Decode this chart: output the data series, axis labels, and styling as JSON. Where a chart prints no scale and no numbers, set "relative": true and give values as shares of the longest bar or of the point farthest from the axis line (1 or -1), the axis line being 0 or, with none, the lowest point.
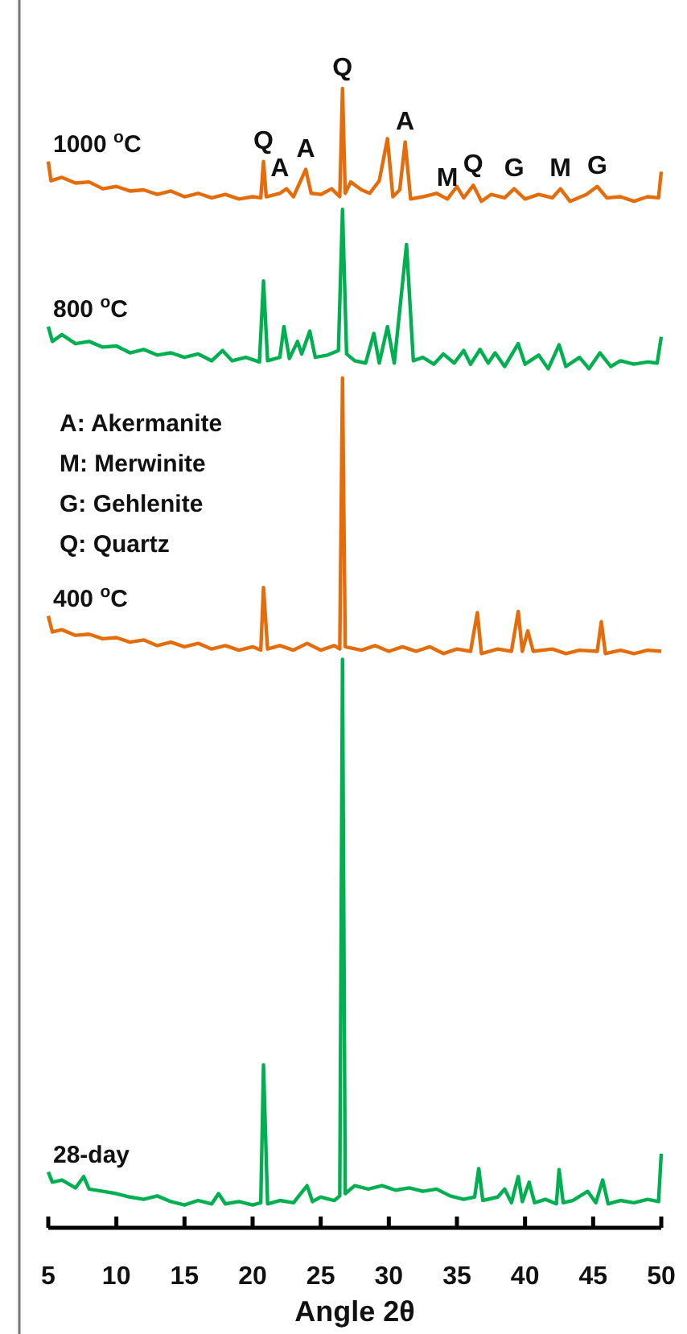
{
  "chart_data": {
    "type": "line",
    "relative": true,
    "xlabel": "Angle 2θ",
    "xlim": [
      5,
      50
    ],
    "xticks": [
      5,
      10,
      15,
      20,
      25,
      30,
      35,
      40,
      45,
      50
    ],
    "tick_labels": "x",
    "grid": false,
    "marker": "none",
    "line_style": "solid",
    "series": [
      {
        "name": "1000 $^{o}$C",
        "color": "#e46c0a",
        "x": [
          5,
          5.2,
          6,
          7,
          8,
          9,
          10,
          11,
          12,
          13,
          14,
          15,
          16,
          17,
          18,
          19,
          20,
          20.6,
          20.8,
          21,
          22,
          22.5,
          23,
          23.9,
          24.3,
          25,
          25.8,
          26.4,
          26.6,
          26.8,
          27.2,
          28,
          28.6,
          29.3,
          29.9,
          30.3,
          30.8,
          31.2,
          31.6,
          32.5,
          33.5,
          34.3,
          35,
          35.5,
          36.2,
          36.8,
          37.5,
          38.5,
          39.2,
          40,
          41,
          42,
          42.6,
          43.3,
          44.5,
          45.3,
          46,
          47,
          48,
          49,
          49.8,
          50
        ],
        "values": [
          0.936,
          0.919,
          0.922,
          0.917,
          0.918,
          0.912,
          0.914,
          0.91,
          0.911,
          0.907,
          0.91,
          0.905,
          0.908,
          0.904,
          0.907,
          0.903,
          0.905,
          0.904,
          0.936,
          0.905,
          0.908,
          0.912,
          0.905,
          0.929,
          0.908,
          0.907,
          0.912,
          0.905,
          1,
          0.908,
          0.918,
          0.911,
          0.908,
          0.919,
          0.956,
          0.905,
          0.911,
          0.953,
          0.903,
          0.905,
          0.908,
          0.903,
          0.914,
          0.904,
          0.915,
          0.901,
          0.907,
          0.904,
          0.912,
          0.903,
          0.907,
          0.904,
          0.912,
          0.901,
          0.907,
          0.914,
          0.904,
          0.905,
          0.901,
          0.905,
          0.904,
          0.927
        ]
      },
      {
        "name": "800 $^{o}$C",
        "color": "#00b050",
        "x": [
          5,
          5.3,
          6,
          7,
          8,
          9,
          10,
          11,
          12,
          13,
          14,
          15,
          16,
          17,
          17.8,
          18.5,
          19.5,
          20.5,
          20.8,
          21.1,
          22,
          22.3,
          22.7,
          23.3,
          23.6,
          24.2,
          24.6,
          25.5,
          26.3,
          26.6,
          26.9,
          27.5,
          28.3,
          28.9,
          29.3,
          29.9,
          30.4,
          31.3,
          31.8,
          32.5,
          33.3,
          34,
          34.8,
          35.5,
          36,
          36.7,
          37.3,
          37.8,
          38.5,
          39.5,
          40,
          41,
          41.7,
          42.5,
          43,
          44,
          44.7,
          45.5,
          46.3,
          47,
          48,
          49,
          49.7,
          50
        ],
        "values": [
          0.791,
          0.778,
          0.784,
          0.776,
          0.778,
          0.773,
          0.774,
          0.768,
          0.771,
          0.766,
          0.768,
          0.764,
          0.767,
          0.761,
          0.77,
          0.761,
          0.764,
          0.76,
          0.831,
          0.761,
          0.764,
          0.791,
          0.763,
          0.778,
          0.767,
          0.787,
          0.764,
          0.766,
          0.77,
          0.894,
          0.767,
          0.761,
          0.759,
          0.785,
          0.759,
          0.791,
          0.759,
          0.863,
          0.761,
          0.764,
          0.758,
          0.767,
          0.759,
          0.77,
          0.758,
          0.771,
          0.759,
          0.768,
          0.756,
          0.776,
          0.758,
          0.766,
          0.754,
          0.775,
          0.756,
          0.764,
          0.754,
          0.768,
          0.756,
          0.761,
          0.758,
          0.76,
          0.759,
          0.782
        ]
      },
      {
        "name": "400 $^{o}$C",
        "color": "#e46c0a",
        "x": [
          5,
          5.3,
          6,
          7,
          8,
          9,
          10,
          11,
          12,
          13,
          14,
          15,
          16,
          17,
          18,
          19,
          20,
          20.6,
          20.8,
          21.1,
          22,
          23,
          24,
          25,
          26,
          26.4,
          26.6,
          26.8,
          28,
          29,
          30,
          31,
          32,
          33,
          34,
          35,
          36,
          36.5,
          36.8,
          38,
          39,
          39.5,
          39.8,
          40.2,
          40.6,
          42,
          43,
          44,
          45.3,
          45.6,
          45.9,
          47,
          48,
          49,
          50
        ],
        "values": [
          0.537,
          0.523,
          0.525,
          0.52,
          0.521,
          0.517,
          0.518,
          0.514,
          0.516,
          0.511,
          0.514,
          0.51,
          0.513,
          0.508,
          0.511,
          0.507,
          0.51,
          0.507,
          0.562,
          0.508,
          0.511,
          0.507,
          0.513,
          0.507,
          0.511,
          0.508,
          0.746,
          0.51,
          0.507,
          0.511,
          0.506,
          0.51,
          0.506,
          0.51,
          0.504,
          0.508,
          0.506,
          0.54,
          0.504,
          0.508,
          0.506,
          0.541,
          0.506,
          0.524,
          0.506,
          0.508,
          0.504,
          0.507,
          0.506,
          0.532,
          0.504,
          0.507,
          0.504,
          0.507,
          0.506
        ]
      },
      {
        "name": "28-day",
        "color": "#00b050",
        "x": [
          5,
          5.3,
          6,
          7,
          7.6,
          8,
          9,
          10,
          11,
          12,
          13,
          14,
          15,
          16,
          17,
          17.5,
          18,
          19,
          20,
          20.6,
          20.8,
          21.1,
          22,
          23,
          24,
          24.4,
          25,
          26,
          26.4,
          26.6,
          26.8,
          27.5,
          28.5,
          29.5,
          30.5,
          31.5,
          32.5,
          33.5,
          34.5,
          35.5,
          36.3,
          36.6,
          36.9,
          38,
          38.5,
          39,
          39.5,
          39.8,
          40.3,
          40.7,
          41.5,
          42.3,
          42.5,
          42.8,
          43.5,
          44.6,
          45.2,
          45.7,
          46.1,
          47,
          48,
          49,
          49.8,
          50
        ],
        "values": [
          0.049,
          0.04,
          0.042,
          0.035,
          0.045,
          0.034,
          0.032,
          0.03,
          0.027,
          0.025,
          0.028,
          0.023,
          0.02,
          0.024,
          0.021,
          0.03,
          0.021,
          0.023,
          0.02,
          0.022,
          0.143,
          0.021,
          0.024,
          0.022,
          0.037,
          0.023,
          0.027,
          0.024,
          0.028,
          0.499,
          0.03,
          0.037,
          0.034,
          0.037,
          0.033,
          0.035,
          0.032,
          0.034,
          0.028,
          0.025,
          0.027,
          0.052,
          0.024,
          0.027,
          0.034,
          0.022,
          0.045,
          0.023,
          0.04,
          0.022,
          0.025,
          0.021,
          0.051,
          0.022,
          0.024,
          0.032,
          0.022,
          0.042,
          0.021,
          0.024,
          0.022,
          0.025,
          0.023,
          0.065
        ]
      }
    ],
    "annotations": [
      {
        "text": "Q",
        "x": 20.8,
        "y": 0.936
      },
      {
        "text": "A",
        "x": 22,
        "y": 0.912
      },
      {
        "text": "A",
        "x": 23.9,
        "y": 0.929
      },
      {
        "text": "Q",
        "x": 26.6,
        "y": 1
      },
      {
        "text": "A",
        "x": 31.2,
        "y": 0.953
      },
      {
        "text": "M",
        "x": 34.3,
        "y": 0.903
      },
      {
        "text": "Q",
        "x": 36.2,
        "y": 0.915
      },
      {
        "text": "G",
        "x": 39.2,
        "y": 0.912
      },
      {
        "text": "M",
        "x": 42.6,
        "y": 0.912
      },
      {
        "text": "G",
        "x": 45.3,
        "y": 0.914
      },
      "A: Akermanite",
      "M: Merwinite",
      "G: Gehlenite",
      "Q: Quartz"
    ]
  }
}
